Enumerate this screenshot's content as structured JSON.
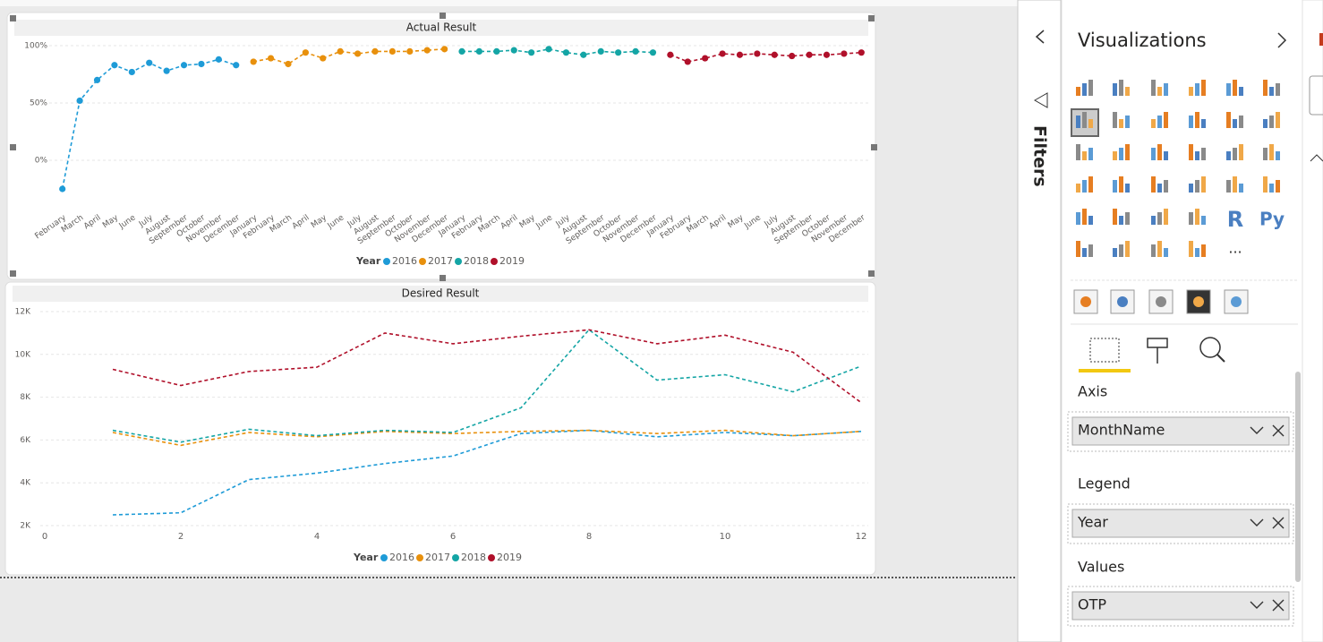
{
  "chart_data": [
    {
      "type": "line",
      "title": "Actual Result",
      "categories": [
        "February",
        "March",
        "April",
        "May",
        "June",
        "July",
        "August",
        "September",
        "October",
        "November",
        "December",
        "January",
        "February",
        "March",
        "April",
        "May",
        "June",
        "July",
        "August",
        "September",
        "October",
        "November",
        "December",
        "January",
        "February",
        "March",
        "April",
        "May",
        "June",
        "July",
        "August",
        "September",
        "October",
        "November",
        "December",
        "January",
        "February",
        "March",
        "April",
        "May",
        "June",
        "July",
        "August",
        "September",
        "October",
        "November",
        "December"
      ],
      "series": [
        {
          "name": "2016",
          "color": "#1e9bd7",
          "values": [
            -25,
            52,
            70,
            83,
            77,
            85,
            78,
            83,
            84,
            88,
            83,
            null,
            null,
            null,
            null,
            null,
            null,
            null,
            null,
            null,
            null,
            null,
            null,
            null,
            null,
            null,
            null,
            null,
            null,
            null,
            null,
            null,
            null,
            null,
            null,
            null,
            null,
            null,
            null,
            null,
            null,
            null,
            null,
            null,
            null,
            null,
            null
          ]
        },
        {
          "name": "2017",
          "color": "#e8900c",
          "values": [
            null,
            null,
            null,
            null,
            null,
            null,
            null,
            null,
            null,
            null,
            null,
            86,
            89,
            84,
            94,
            89,
            95,
            93,
            95,
            95,
            95,
            96,
            97,
            null,
            null,
            null,
            null,
            null,
            null,
            null,
            null,
            null,
            null,
            null,
            null,
            null,
            null,
            null,
            null,
            null,
            null,
            null,
            null,
            null,
            null,
            null,
            null
          ]
        },
        {
          "name": "2018",
          "color": "#14a5a5",
          "values": [
            null,
            null,
            null,
            null,
            null,
            null,
            null,
            null,
            null,
            null,
            null,
            null,
            null,
            null,
            null,
            null,
            null,
            null,
            null,
            null,
            null,
            null,
            null,
            95,
            95,
            95,
            96,
            94,
            97,
            94,
            92,
            95,
            94,
            95,
            94,
            null,
            null,
            null,
            null,
            null,
            null,
            null,
            null,
            null,
            null,
            null,
            null
          ]
        },
        {
          "name": "2019",
          "color": "#b0102a",
          "values": [
            null,
            null,
            null,
            null,
            null,
            null,
            null,
            null,
            null,
            null,
            null,
            null,
            null,
            null,
            null,
            null,
            null,
            null,
            null,
            null,
            null,
            null,
            null,
            null,
            null,
            null,
            null,
            null,
            null,
            null,
            null,
            null,
            null,
            null,
            null,
            92,
            86,
            89,
            93,
            92,
            93,
            92,
            91,
            92,
            92,
            93,
            94
          ]
        }
      ],
      "ylim": [
        -40,
        105
      ],
      "yticks": [
        {
          "value": 0,
          "label": "0%"
        },
        {
          "value": 50,
          "label": "50%"
        },
        {
          "value": 100,
          "label": "100%"
        }
      ],
      "grid": true,
      "markers": true,
      "dashed": true,
      "legend_title": "Year",
      "legend": "bottom"
    },
    {
      "type": "line",
      "title": "Desired Result",
      "x": [
        1,
        2,
        3,
        4,
        5,
        6,
        7,
        8,
        9,
        10,
        11,
        12
      ],
      "series": [
        {
          "name": "2016",
          "color": "#1e9bd7",
          "values": [
            2500,
            2600,
            4150,
            4450,
            4900,
            5250,
            6300,
            6450,
            6150,
            6350,
            6200,
            6400
          ]
        },
        {
          "name": "2017",
          "color": "#e8900c",
          "values": [
            6350,
            5750,
            6350,
            6150,
            6400,
            6300,
            6400,
            6450,
            6300,
            6450,
            6200,
            6400
          ]
        },
        {
          "name": "2018",
          "color": "#14a5a5",
          "values": [
            6450,
            5900,
            6500,
            6200,
            6450,
            6350,
            7500,
            11150,
            8800,
            9050,
            8250,
            9450
          ]
        },
        {
          "name": "2019",
          "color": "#b0102a",
          "values": [
            9300,
            8550,
            9200,
            9400,
            11000,
            10500,
            10850,
            11150,
            10500,
            10900,
            10100,
            7750
          ]
        }
      ],
      "xlim": [
        0,
        12
      ],
      "xticks": [
        0,
        2,
        4,
        6,
        8,
        10,
        12
      ],
      "ylim": [
        2000,
        12000
      ],
      "yticks": [
        {
          "value": 2000,
          "label": "2K"
        },
        {
          "value": 4000,
          "label": "4K"
        },
        {
          "value": 6000,
          "label": "6K"
        },
        {
          "value": 8000,
          "label": "8K"
        },
        {
          "value": 10000,
          "label": "10K"
        },
        {
          "value": 12000,
          "label": "12K"
        }
      ],
      "grid": true,
      "markers": false,
      "dashed": true,
      "legend_title": "Year",
      "legend": "bottom"
    }
  ],
  "filters": {
    "title": "Filters"
  },
  "visualizations": {
    "title": "Visualizations",
    "icon_texts": [
      "R",
      "Py",
      "..."
    ],
    "wells": [
      {
        "label": "Axis",
        "field": "MonthName"
      },
      {
        "label": "Legend",
        "field": "Year"
      },
      {
        "label": "Values",
        "field": "OTP"
      }
    ]
  }
}
